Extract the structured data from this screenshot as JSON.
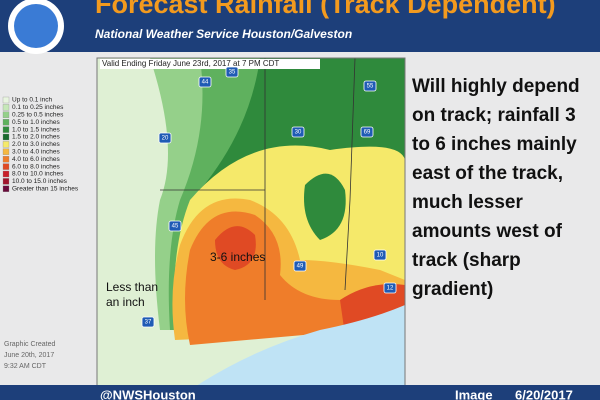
{
  "header": {
    "title": "Forecast Rainfall (Track Dependent)",
    "subtitle": "National Weather Service Houston/Galveston"
  },
  "map": {
    "valid": "Valid Ending Friday June 23rd, 2017 at 7 PM CDT",
    "legend": [
      {
        "label": "Up to 0.1 inch",
        "color": "#e8f5e0"
      },
      {
        "label": "0.1 to 0.25 inches",
        "color": "#c6e8b8"
      },
      {
        "label": "0.25 to 0.5 inches",
        "color": "#95d08a"
      },
      {
        "label": "0.5 to 1.0 inches",
        "color": "#5fb15e"
      },
      {
        "label": "1.0 to 1.5 inches",
        "color": "#2f8a3c"
      },
      {
        "label": "1.5 to 2.0 inches",
        "color": "#1a6b2e"
      },
      {
        "label": "2.0 to 3.0 inches",
        "color": "#f5e96a"
      },
      {
        "label": "3.0 to 4.0 inches",
        "color": "#f5b840"
      },
      {
        "label": "4.0 to 6.0 inches",
        "color": "#ef7d2a"
      },
      {
        "label": "6.0 to 8.0 inches",
        "color": "#e04a24"
      },
      {
        "label": "8.0 to 10.0 inches",
        "color": "#c9202a"
      },
      {
        "label": "10.0 to 15.0 inches",
        "color": "#a0142c"
      },
      {
        "label": "Greater than 15 inches",
        "color": "#6a0a3a"
      }
    ],
    "annotations": [
      "3-6 inches",
      "Less than an inch"
    ],
    "highways": [
      "44",
      "35",
      "30",
      "20",
      "45",
      "49",
      "10",
      "12",
      "37",
      "55",
      "69"
    ],
    "created": [
      "Graphic Created",
      "June 20th, 2017",
      "9:32 AM CDT"
    ]
  },
  "side_text": "Will highly depend on track; rainfall 3 to 6 inches mainly east of the track, much lesser amounts west of track (sharp gradient)",
  "footer": {
    "handle": "@NWSHouston",
    "image": "Image",
    "date": "6/20/2017"
  }
}
